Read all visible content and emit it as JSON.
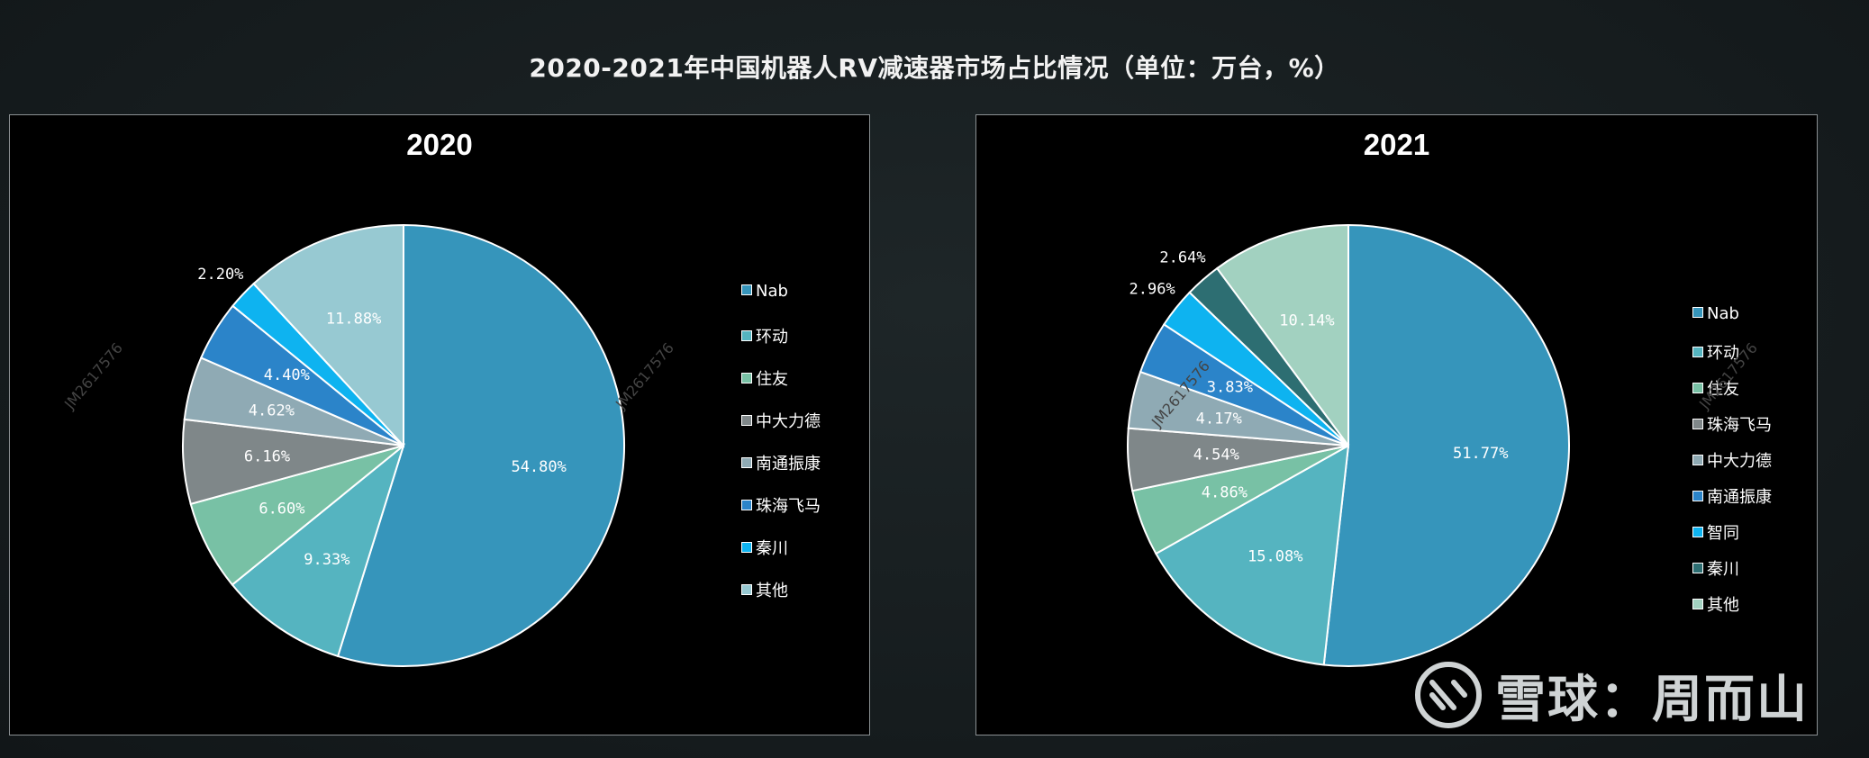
{
  "page": {
    "title": "2020-2021年中国机器人RV减速器市场占比情况（单位：万台，%）",
    "watermark": "JM2617576",
    "brand": "雪球：周而山"
  },
  "chart_data": [
    {
      "type": "pie",
      "title": "2020",
      "legend_position": "right",
      "categories": [
        "Nab",
        "环动",
        "住友",
        "中大力德",
        "南通振康",
        "珠海飞马",
        "秦川",
        "其他"
      ],
      "values": [
        54.8,
        9.33,
        6.6,
        6.16,
        4.62,
        4.4,
        2.2,
        11.88
      ],
      "value_labels": [
        "54.80%",
        "9.33%",
        "6.60%",
        "6.16%",
        "4.62%",
        "4.40%",
        "2.20%",
        "11.88%"
      ],
      "colors": [
        "#3695bb",
        "#55b4c0",
        "#78c1a5",
        "#7f8789",
        "#8faab4",
        "#2b84c9",
        "#0eb3f0",
        "#97c9d2"
      ]
    },
    {
      "type": "pie",
      "title": "2021",
      "legend_position": "right",
      "categories": [
        "Nab",
        "环动",
        "住友",
        "珠海飞马",
        "中大力德",
        "南通振康",
        "智同",
        "秦川",
        "其他"
      ],
      "values": [
        51.77,
        15.08,
        4.86,
        4.54,
        4.17,
        3.83,
        2.96,
        2.64,
        10.14
      ],
      "value_labels": [
        "51.77%",
        "15.08%",
        "4.86%",
        "4.54%",
        "4.17%",
        "3.83%",
        "2.96%",
        "2.64%",
        "10.14%"
      ],
      "colors": [
        "#3695bb",
        "#55b4c0",
        "#78c1a5",
        "#7f8789",
        "#8faab4",
        "#2b84c9",
        "#0eb3f0",
        "#2d6e72",
        "#a2d1c0"
      ]
    }
  ]
}
